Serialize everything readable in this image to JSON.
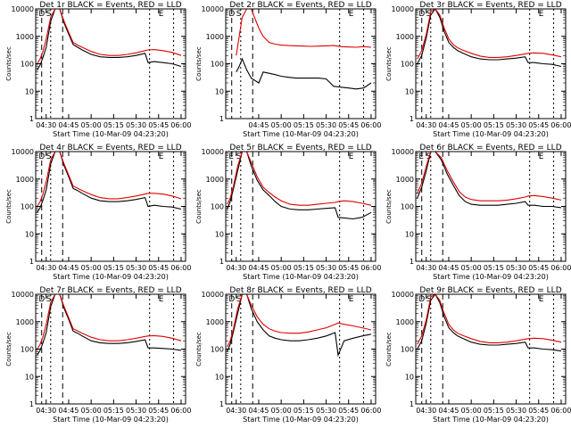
{
  "chart_data": [
    {
      "type": "line",
      "title": "Det 1r BLACK = Events, RED = LLD",
      "xlabel": "Start Time (10-Mar-09 04:23:20)",
      "ylabel": "Counts/sec",
      "ylim": [
        1,
        10000
      ],
      "y_scale": "log",
      "x_ticks": [
        "04:30",
        "04:45",
        "05:00",
        "05:15",
        "05:30",
        "05:45",
        "06:00"
      ],
      "y_ticks": [
        "1",
        "10",
        "100",
        "1000",
        "10000"
      ],
      "markers": [
        "D",
        "S",
        "E"
      ],
      "x": [
        "04:24",
        "04:26",
        "04:28",
        "04:30",
        "04:33",
        "04:36",
        "04:39",
        "04:42",
        "04:45",
        "04:48",
        "04:51",
        "04:54",
        "05:00",
        "05:06",
        "05:12",
        "05:18",
        "05:24",
        "05:30",
        "05:36",
        "05:38",
        "05:42",
        "05:48",
        "05:54",
        "06:00"
      ],
      "series": [
        {
          "name": "Events",
          "color": "#000000",
          "values": [
            60,
            90,
            180,
            400,
            3500,
            10000,
            10000,
            3000,
            1200,
            500,
            400,
            320,
            220,
            180,
            170,
            170,
            180,
            200,
            240,
            110,
            120,
            110,
            100,
            80
          ]
        },
        {
          "name": "LLD",
          "color": "#e00000",
          "values": [
            100,
            150,
            300,
            800,
            5000,
            10000,
            10000,
            3500,
            1400,
            600,
            480,
            400,
            280,
            220,
            200,
            200,
            220,
            250,
            300,
            320,
            330,
            300,
            260,
            200
          ]
        }
      ]
    },
    {
      "type": "line",
      "title": "Det 2r BLACK = Events, RED = LLD",
      "xlabel": "Start Time (10-Mar-09 04:23:20)",
      "ylabel": "Counts/sec",
      "ylim": [
        1,
        10000
      ],
      "y_scale": "log",
      "x_ticks": [
        "04:45",
        "05:00",
        "05:15",
        "05:30",
        "05:45",
        "06:00"
      ],
      "y_ticks": [
        "1",
        "10",
        "100",
        "1000",
        "10000"
      ],
      "markers": [
        "D",
        "S",
        "E"
      ],
      "x": [
        "04:30",
        "04:32",
        "04:34",
        "04:37",
        "04:40",
        "04:45",
        "04:48",
        "04:52",
        "04:56",
        "05:00",
        "05:05",
        "05:10",
        "05:15",
        "05:20",
        "05:25",
        "05:30",
        "05:35",
        "05:40",
        "05:45",
        "05:50",
        "05:55",
        "06:00"
      ],
      "series": [
        {
          "name": "Events",
          "color": "#000000",
          "values": [
            50,
            80,
            150,
            60,
            30,
            20,
            50,
            45,
            40,
            35,
            32,
            30,
            30,
            30,
            30,
            28,
            15,
            14,
            13,
            12,
            13,
            20
          ]
        },
        {
          "name": "LLD",
          "color": "#e00000",
          "values": [
            200,
            1000,
            5000,
            10000,
            10000,
            2000,
            1000,
            600,
            520,
            480,
            460,
            450,
            440,
            430,
            440,
            450,
            460,
            420,
            410,
            400,
            420,
            400
          ]
        }
      ]
    },
    {
      "type": "line",
      "title": "Det 3r BLACK = Events, RED = LLD",
      "xlabel": "Start Time (10-Mar-09 04:23:20)",
      "ylabel": "Counts/sec",
      "ylim": [
        1,
        10000
      ],
      "y_scale": "log",
      "x_ticks": [
        "04:30",
        "04:45",
        "05:00",
        "05:15",
        "05:30",
        "05:45",
        "06:00"
      ],
      "y_ticks": [
        "1",
        "10",
        "100",
        "1000",
        "10000"
      ],
      "markers": [
        "D",
        "S",
        "E"
      ],
      "x": [
        "04:24",
        "04:27",
        "04:30",
        "04:33",
        "04:36",
        "04:39",
        "04:42",
        "04:45",
        "04:48",
        "04:51",
        "04:54",
        "05:00",
        "05:06",
        "05:12",
        "05:18",
        "05:24",
        "05:30",
        "05:36",
        "05:38",
        "05:42",
        "05:48",
        "05:54",
        "06:00"
      ],
      "series": [
        {
          "name": "Events",
          "color": "#000000",
          "values": [
            100,
            200,
            900,
            6000,
            10000,
            5000,
            1500,
            600,
            400,
            300,
            250,
            180,
            150,
            140,
            140,
            150,
            160,
            180,
            110,
            110,
            100,
            95,
            80
          ]
        },
        {
          "name": "LLD",
          "color": "#e00000",
          "values": [
            150,
            300,
            1200,
            8000,
            10000,
            6000,
            2000,
            800,
            500,
            380,
            320,
            240,
            190,
            170,
            170,
            180,
            200,
            230,
            240,
            250,
            240,
            210,
            180
          ]
        }
      ]
    },
    {
      "type": "line",
      "title": "Det 4r BLACK = Events, RED = LLD",
      "xlabel": "Start Time (10-Mar-09 04:23:20)",
      "ylabel": "Counts/sec",
      "ylim": [
        1,
        10000
      ],
      "y_scale": "log",
      "x_ticks": [
        "04:30",
        "04:45",
        "05:00",
        "05:15",
        "05:30",
        "05:45",
        "06:00"
      ],
      "y_ticks": [
        "1",
        "10",
        "100",
        "1000",
        "10000"
      ],
      "markers": [
        "D",
        "S",
        "E"
      ],
      "x": [
        "04:24",
        "04:26",
        "04:28",
        "04:30",
        "04:33",
        "04:36",
        "04:39",
        "04:42",
        "04:45",
        "04:48",
        "04:51",
        "04:54",
        "05:00",
        "05:06",
        "05:12",
        "05:18",
        "05:24",
        "05:30",
        "05:36",
        "05:38",
        "05:42",
        "05:48",
        "05:54",
        "06:00"
      ],
      "series": [
        {
          "name": "Events",
          "color": "#000000",
          "values": [
            60,
            90,
            180,
            400,
            3500,
            10000,
            10000,
            3000,
            1200,
            450,
            380,
            300,
            200,
            160,
            150,
            150,
            160,
            180,
            210,
            100,
            110,
            100,
            95,
            80
          ]
        },
        {
          "name": "LLD",
          "color": "#e00000",
          "values": [
            100,
            150,
            300,
            800,
            5000,
            10000,
            10000,
            3500,
            1400,
            550,
            460,
            380,
            270,
            210,
            190,
            190,
            210,
            240,
            280,
            300,
            300,
            280,
            240,
            190
          ]
        }
      ]
    },
    {
      "type": "line",
      "title": "Det 5r BLACK = Events, RED = LLD",
      "xlabel": "Start Time (10-Mar-09 04:23:20)",
      "ylabel": "Counts/sec",
      "ylim": [
        1,
        10000
      ],
      "y_scale": "log",
      "x_ticks": [
        "04:30",
        "04:45",
        "05:00",
        "05:15",
        "05:30",
        "05:45",
        "06:00"
      ],
      "y_ticks": [
        "1",
        "10",
        "100",
        "1000",
        "10000"
      ],
      "markers": [
        "E",
        "S",
        "E"
      ],
      "x": [
        "04:24",
        "04:26",
        "04:28",
        "04:31",
        "04:34",
        "04:37",
        "04:40",
        "04:44",
        "04:48",
        "04:52",
        "04:56",
        "05:00",
        "05:06",
        "05:12",
        "05:18",
        "05:24",
        "05:30",
        "05:36",
        "05:38",
        "05:42",
        "05:48",
        "05:54",
        "06:00"
      ],
      "series": [
        {
          "name": "Events",
          "color": "#000000",
          "values": [
            80,
            150,
            400,
            2000,
            10000,
            10000,
            3000,
            900,
            400,
            250,
            150,
            100,
            80,
            75,
            75,
            80,
            85,
            90,
            40,
            38,
            35,
            40,
            60
          ]
        },
        {
          "name": "LLD",
          "color": "#e00000",
          "values": [
            120,
            200,
            500,
            3000,
            10000,
            10000,
            4000,
            1200,
            500,
            320,
            220,
            160,
            120,
            110,
            110,
            120,
            130,
            140,
            150,
            160,
            150,
            130,
            110
          ]
        }
      ]
    },
    {
      "type": "line",
      "title": "Det 6r BLACK = Events, RED = LLD",
      "xlabel": "Start Time (10-Mar-09 04:23:20)",
      "ylabel": "Counts/sec",
      "ylim": [
        1,
        10000
      ],
      "y_scale": "log",
      "x_ticks": [
        "04:30",
        "04:45",
        "05:00",
        "05:15",
        "05:30",
        "05:45",
        "06:00"
      ],
      "y_ticks": [
        "1",
        "10",
        "100",
        "1000",
        "10000"
      ],
      "markers": [
        "E",
        "S",
        "E"
      ],
      "x": [
        "04:24",
        "04:27",
        "04:30",
        "04:33",
        "04:36",
        "04:40",
        "04:44",
        "04:48",
        "04:52",
        "04:56",
        "05:00",
        "05:06",
        "05:12",
        "05:18",
        "05:24",
        "05:30",
        "05:36",
        "05:38",
        "05:42",
        "05:48",
        "05:54",
        "06:00"
      ],
      "series": [
        {
          "name": "Events",
          "color": "#000000",
          "values": [
            200,
            500,
            2000,
            10000,
            10000,
            5000,
            1500,
            600,
            250,
            150,
            120,
            110,
            110,
            110,
            120,
            130,
            150,
            110,
            110,
            100,
            100,
            90
          ]
        },
        {
          "name": "LLD",
          "color": "#e00000",
          "values": [
            300,
            700,
            3000,
            10000,
            10000,
            6000,
            2000,
            800,
            350,
            220,
            180,
            160,
            160,
            160,
            170,
            190,
            220,
            240,
            250,
            230,
            200,
            170
          ]
        }
      ]
    },
    {
      "type": "line",
      "title": "Det 7r BLACK = Events, RED = LLD",
      "xlabel": "Start Time (10-Mar-09 04:23:20)",
      "ylabel": "Counts/sec",
      "ylim": [
        1,
        10000
      ],
      "y_scale": "log",
      "x_ticks": [
        "04:30",
        "04:45",
        "05:00",
        "05:15",
        "05:30",
        "05:45",
        "06:00"
      ],
      "y_ticks": [
        "1",
        "10",
        "100",
        "1000",
        "10000"
      ],
      "markers": [
        "D",
        "S",
        "E"
      ],
      "x": [
        "04:24",
        "04:26",
        "04:28",
        "04:30",
        "04:33",
        "04:36",
        "04:39",
        "04:42",
        "04:45",
        "04:48",
        "04:51",
        "04:54",
        "05:00",
        "05:06",
        "05:12",
        "05:18",
        "05:24",
        "05:30",
        "05:36",
        "05:38",
        "05:42",
        "05:48",
        "05:54",
        "06:00"
      ],
      "series": [
        {
          "name": "Events",
          "color": "#000000",
          "values": [
            60,
            90,
            180,
            400,
            3500,
            10000,
            10000,
            3000,
            1200,
            450,
            380,
            300,
            200,
            170,
            160,
            160,
            170,
            190,
            220,
            110,
            110,
            105,
            100,
            90
          ]
        },
        {
          "name": "LLD",
          "color": "#e00000",
          "values": [
            100,
            150,
            300,
            800,
            5000,
            10000,
            10000,
            3500,
            1400,
            550,
            460,
            380,
            270,
            220,
            200,
            200,
            220,
            250,
            290,
            300,
            310,
            290,
            250,
            200
          ]
        }
      ]
    },
    {
      "type": "line",
      "title": "Det 8r BLACK = Events, RED = LLD",
      "xlabel": "Start Time (10-Mar-09 04:23:20)",
      "ylabel": "Counts/sec",
      "ylim": [
        1,
        10000
      ],
      "y_scale": "log",
      "x_ticks": [
        "04:30",
        "04:45",
        "05:00",
        "05:15",
        "05:30",
        "05:45",
        "06:00"
      ],
      "y_ticks": [
        "1",
        "10",
        "100",
        "1000",
        "10000"
      ],
      "markers": [
        "D",
        "S",
        "E"
      ],
      "x": [
        "04:24",
        "04:26",
        "04:28",
        "04:31",
        "04:34",
        "04:37",
        "04:40",
        "04:44",
        "04:48",
        "04:52",
        "04:56",
        "05:00",
        "05:06",
        "05:12",
        "05:18",
        "05:24",
        "05:30",
        "05:36",
        "05:38",
        "05:42",
        "05:48",
        "05:54",
        "06:00"
      ],
      "series": [
        {
          "name": "Events",
          "color": "#000000",
          "values": [
            80,
            150,
            400,
            2000,
            10000,
            10000,
            3000,
            1000,
            500,
            300,
            250,
            220,
            200,
            200,
            220,
            250,
            300,
            400,
            60,
            200,
            250,
            300,
            350
          ]
        },
        {
          "name": "LLD",
          "color": "#e00000",
          "values": [
            120,
            200,
            500,
            3000,
            10000,
            10000,
            4000,
            1500,
            800,
            550,
            450,
            400,
            380,
            380,
            420,
            500,
            600,
            800,
            900,
            800,
            700,
            600,
            500
          ]
        }
      ]
    },
    {
      "type": "line",
      "title": "Det 9r BLACK = Events, RED = LLD",
      "xlabel": "Start Time (10-Mar-09 04:23:20)",
      "ylabel": "Counts/sec",
      "ylim": [
        1,
        10000
      ],
      "y_scale": "log",
      "x_ticks": [
        "04:30",
        "04:45",
        "05:00",
        "05:15",
        "05:30",
        "05:45",
        "06:00"
      ],
      "y_ticks": [
        "1",
        "10",
        "100",
        "1000",
        "10000"
      ],
      "markers": [
        "D",
        "S",
        "E"
      ],
      "x": [
        "04:24",
        "04:27",
        "04:30",
        "04:33",
        "04:36",
        "04:39",
        "04:42",
        "04:45",
        "04:48",
        "04:51",
        "04:54",
        "05:00",
        "05:06",
        "05:12",
        "05:18",
        "05:24",
        "05:30",
        "05:36",
        "05:38",
        "05:42",
        "05:48",
        "05:54",
        "06:00"
      ],
      "series": [
        {
          "name": "Events",
          "color": "#000000",
          "values": [
            100,
            200,
            900,
            6000,
            10000,
            5000,
            1500,
            600,
            400,
            300,
            250,
            180,
            150,
            140,
            140,
            150,
            160,
            180,
            110,
            110,
            100,
            95,
            85
          ]
        },
        {
          "name": "LLD",
          "color": "#e00000",
          "values": [
            150,
            300,
            1200,
            8000,
            10000,
            6000,
            2000,
            800,
            500,
            380,
            320,
            240,
            190,
            170,
            170,
            180,
            200,
            230,
            240,
            250,
            240,
            210,
            180
          ]
        }
      ]
    }
  ]
}
